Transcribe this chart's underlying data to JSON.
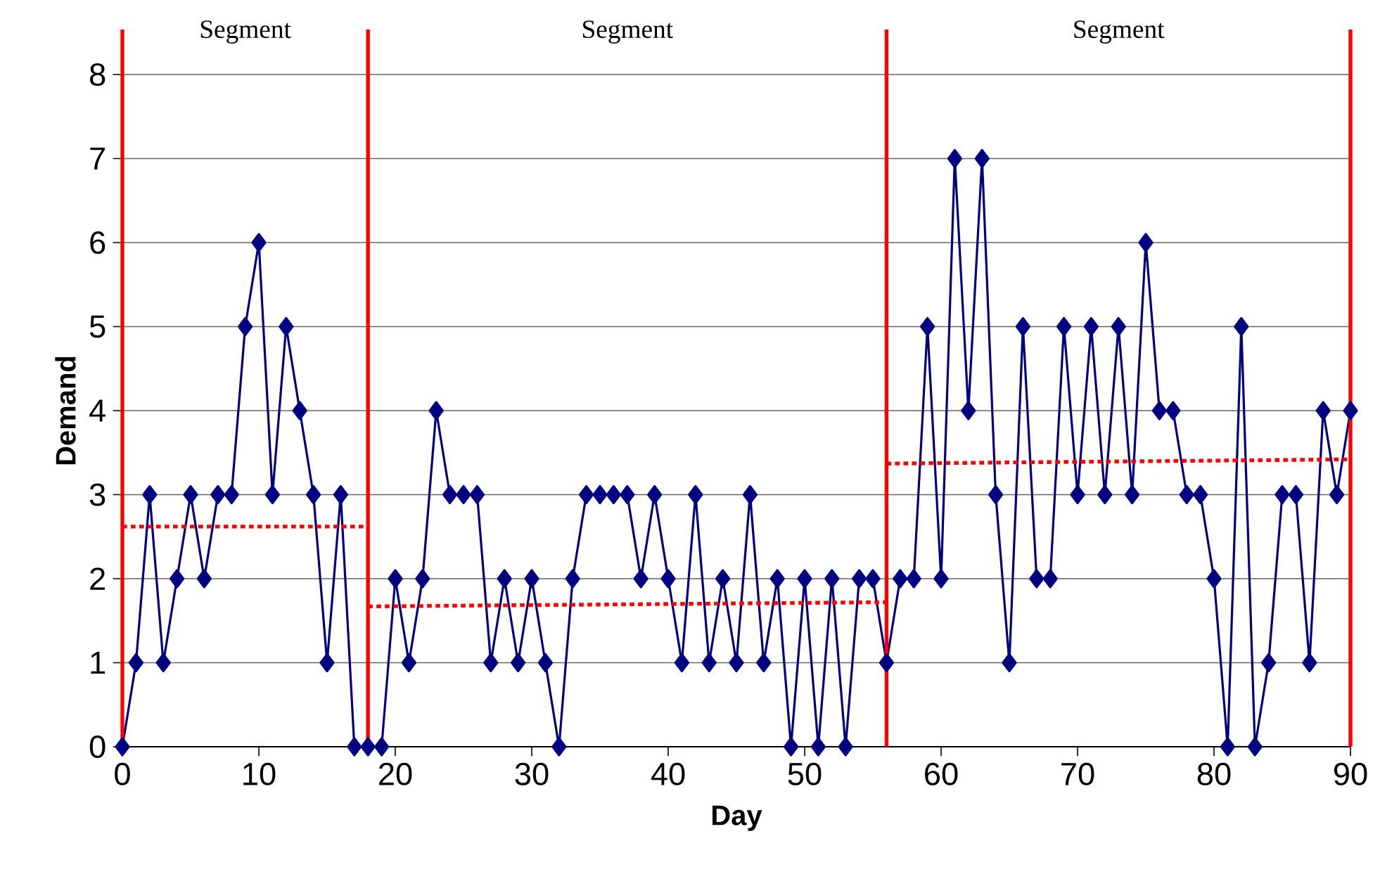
{
  "chart_data": {
    "type": "line",
    "xlabel": "Day",
    "ylabel": "Demand",
    "xlim": [
      0,
      90
    ],
    "ylim": [
      0,
      8
    ],
    "xticks": [
      0,
      10,
      20,
      30,
      40,
      50,
      60,
      70,
      80,
      90
    ],
    "yticks": [
      0,
      1,
      2,
      3,
      4,
      5,
      6,
      7,
      8
    ],
    "grid": "y",
    "series": [
      {
        "color": "#000080",
        "marker": "diamond",
        "line_style": "solid",
        "x": [
          0,
          1,
          2,
          3,
          4,
          5,
          6,
          7,
          8,
          9,
          10,
          11,
          12,
          13,
          14,
          15,
          16,
          17,
          18,
          19,
          20,
          21,
          22,
          23,
          24,
          25,
          26,
          27,
          28,
          29,
          30,
          31,
          32,
          33,
          34,
          35,
          36,
          37,
          38,
          39,
          40,
          41,
          42,
          43,
          44,
          45,
          46,
          47,
          48,
          49,
          50,
          51,
          52,
          53,
          54,
          55,
          56,
          57,
          58,
          59,
          60,
          61,
          62,
          63,
          64,
          65,
          66,
          67,
          68,
          69,
          70,
          71,
          72,
          73,
          74,
          75,
          76,
          77,
          78,
          79,
          80,
          81,
          82,
          83,
          84,
          85,
          86,
          87,
          88,
          89,
          90
        ],
        "values": [
          0,
          1,
          3,
          1,
          2,
          3,
          2,
          3,
          3,
          5,
          6,
          3,
          5,
          4,
          3,
          1,
          3,
          0,
          0,
          0,
          2,
          1,
          2,
          4,
          3,
          3,
          3,
          1,
          2,
          1,
          2,
          1,
          0,
          2,
          3,
          3,
          3,
          3,
          2,
          3,
          2,
          1,
          3,
          1,
          2,
          1,
          3,
          1,
          2,
          0,
          2,
          0,
          2,
          0,
          2,
          2,
          1,
          2,
          2,
          5,
          2,
          7,
          4,
          7,
          3,
          1,
          5,
          2,
          2,
          5,
          3,
          5,
          3,
          5,
          3,
          6,
          4,
          4,
          3,
          3,
          2,
          0,
          5,
          0,
          1,
          3,
          3,
          1,
          4,
          3,
          4
        ]
      },
      {
        "color": "#ff0000",
        "marker": "none",
        "line_style": "dotted",
        "x": [
          0,
          18
        ],
        "values": [
          2.62,
          2.62
        ]
      },
      {
        "color": "#ff0000",
        "marker": "none",
        "line_style": "dotted",
        "x": [
          18,
          56
        ],
        "values": [
          1.67,
          1.72
        ]
      },
      {
        "color": "#ff0000",
        "marker": "none",
        "line_style": "dotted",
        "x": [
          56,
          90
        ],
        "values": [
          3.37,
          3.42
        ]
      }
    ],
    "ref_lines": [
      {
        "axis": "x",
        "value": 0,
        "color": "#ff0000"
      },
      {
        "axis": "x",
        "value": 18,
        "color": "#ff0000"
      },
      {
        "axis": "x",
        "value": 56,
        "color": "#ff0000"
      },
      {
        "axis": "x",
        "value": 90,
        "color": "#ff0000"
      }
    ],
    "annotations": [
      "Segment",
      "Segment",
      "Segment"
    ]
  }
}
